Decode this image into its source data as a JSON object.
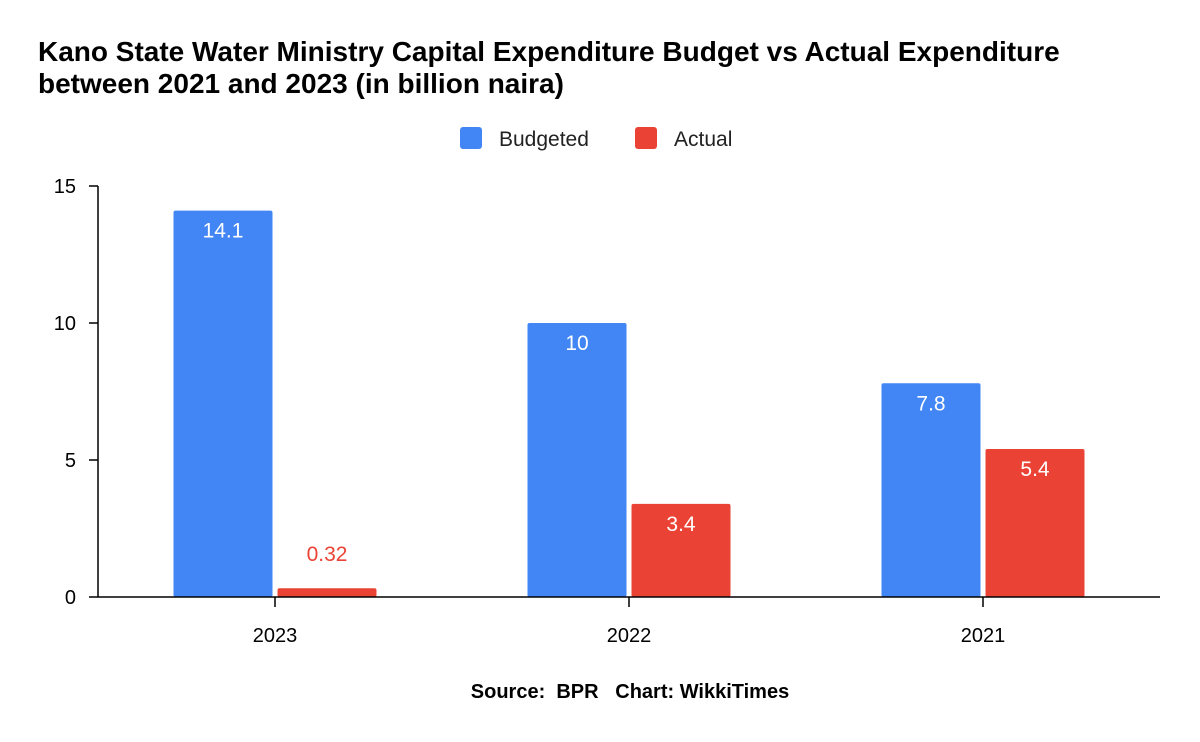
{
  "chart_data": {
    "type": "bar",
    "title": "Kano State Water Ministry Capital Expenditure Budget vs Actual Expenditure between 2021 and 2023 (in billion naira)",
    "categories": [
      "2023",
      "2022",
      "2021"
    ],
    "series": [
      {
        "name": "Budgeted",
        "values": [
          14.1,
          10,
          7.8
        ],
        "labels": [
          "14.1",
          "10",
          "7.8"
        ],
        "color": "#4285F4"
      },
      {
        "name": "Actual",
        "values": [
          0.32,
          3.4,
          5.4
        ],
        "labels": [
          "0.32",
          "3.4",
          "5.4"
        ],
        "color": "#EA4335"
      }
    ],
    "ylim": [
      0,
      15
    ],
    "yticks": [
      0,
      5,
      10,
      15
    ],
    "xlabel": "",
    "ylabel": "",
    "grid": false,
    "legend": "top-center"
  },
  "footer": {
    "source": "Source:  BPR   Chart: WikkiTimes"
  }
}
